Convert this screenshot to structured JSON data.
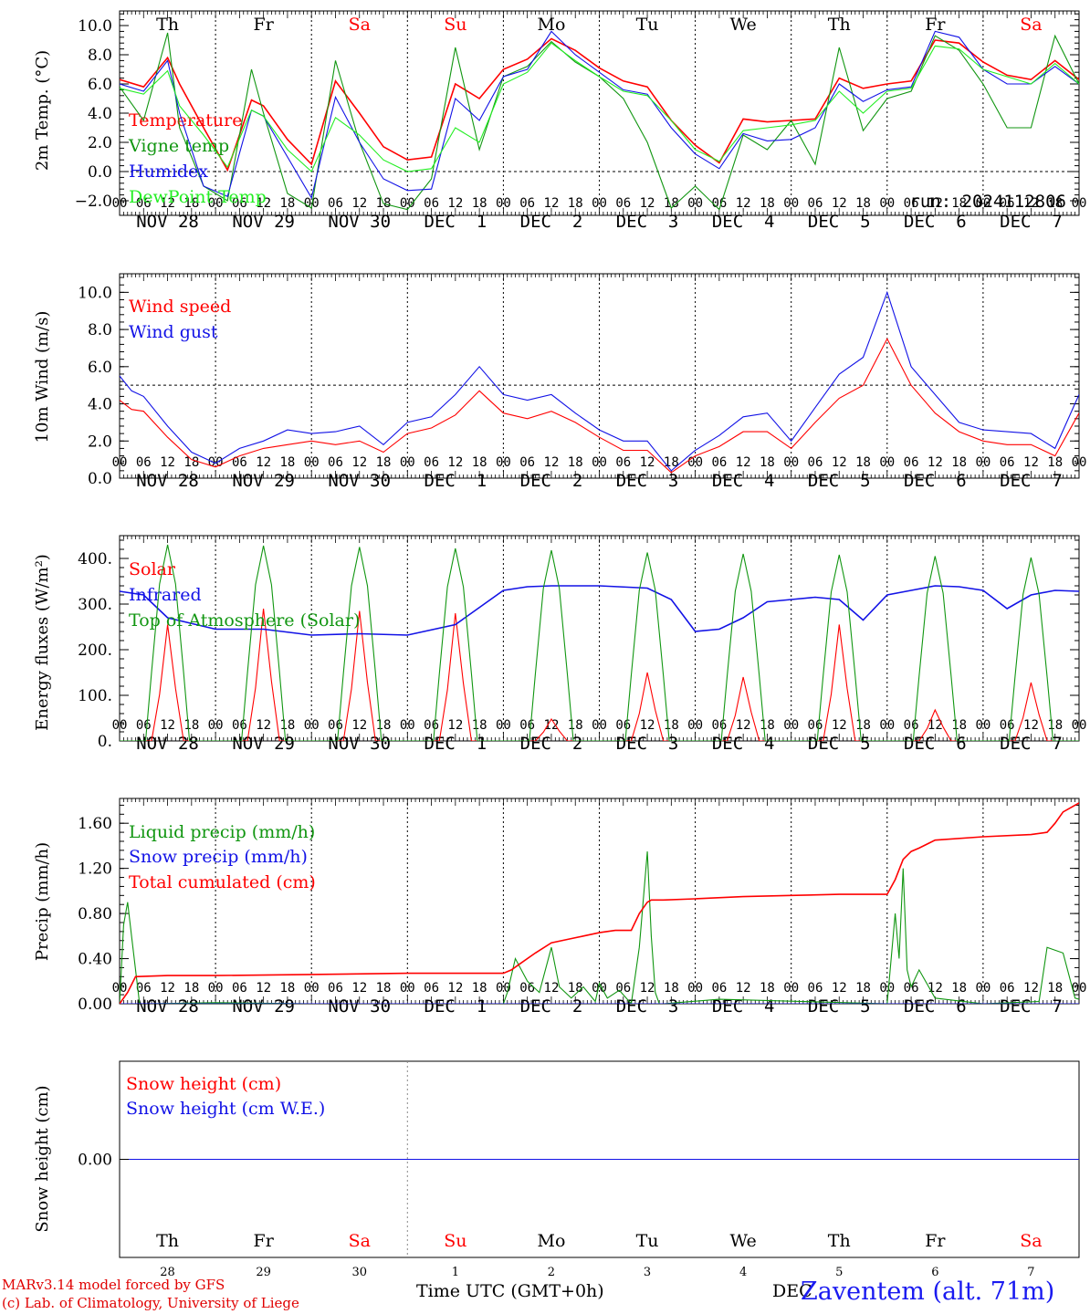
{
  "run_label": "run: 2024112806",
  "days": [
    "Th",
    "Fr",
    "Sa",
    "Su",
    "Mo",
    "Tu",
    "We",
    "Th",
    "Fr",
    "Sa"
  ],
  "weekend_days": [
    "Sa",
    "Su"
  ],
  "date_labels": [
    "NOV 28",
    "NOV 29",
    "NOV 30",
    "DEC  1",
    "DEC  2",
    "DEC  3",
    "DEC  4",
    "DEC  5",
    "DEC  6",
    "DEC  7"
  ],
  "bottom_day_numbers": [
    "28",
    "29",
    "30",
    "1",
    "2",
    "3",
    "4",
    "5",
    "6",
    "7"
  ],
  "hour_ticks": [
    "00",
    "06",
    "12",
    "18"
  ],
  "final_hour_tick": "00",
  "colors": {
    "red": "#ff0000",
    "green": "#119611",
    "blue": "#1212e6",
    "lightgreen": "#22ee22"
  },
  "footer": {
    "credit_line1": "MARv3.14 model forced by GFS",
    "credit_line2": "(c) Lab. of Climatology, University of Liege",
    "xaxis_title": "Time UTC (GMT+0h)",
    "month_overlap": "DEC",
    "station": "Zaventem (alt. 71m)"
  },
  "chart_data": [
    {
      "type": "line",
      "ylabel": "2m Temp. (°C)",
      "ylim": [
        -3,
        11
      ],
      "yticks": [
        -2,
        0,
        2,
        4,
        6,
        8,
        10
      ],
      "ytick_labels": [
        "−2.0",
        "0.0",
        "2.0",
        "4.0",
        "6.0",
        "8.0",
        "10.0"
      ],
      "ref_line": 0,
      "x_unit": "hours since NOV 28 00 UTC",
      "series": [
        {
          "name": "Temperature",
          "color": "red",
          "x": [
            0,
            6,
            12,
            15,
            21,
            27,
            33,
            36,
            42,
            48,
            54,
            60,
            66,
            72,
            78,
            84,
            90,
            96,
            102,
            108,
            114,
            120,
            126,
            132,
            138,
            144,
            150,
            156,
            162,
            168,
            174,
            180,
            186,
            192,
            198,
            204,
            210,
            216,
            222,
            228,
            234,
            240
          ],
          "y": [
            6.3,
            5.8,
            7.8,
            6,
            3,
            0.1,
            4.9,
            4.5,
            2.2,
            0.5,
            6.2,
            4,
            1.7,
            0.8,
            1,
            6,
            5,
            7,
            7.7,
            9.1,
            8.3,
            7.1,
            6.2,
            5.8,
            3.5,
            1.8,
            0.6,
            3.6,
            3.4,
            3.5,
            3.6,
            6.4,
            5.7,
            6,
            6.2,
            9,
            8.8,
            7.5,
            6.6,
            6.3,
            7.6,
            6.3
          ]
        },
        {
          "name": "Vigne temp",
          "color": "green",
          "x": [
            0,
            6,
            12,
            15,
            21,
            27,
            33,
            36,
            42,
            48,
            54,
            60,
            66,
            72,
            78,
            84,
            90,
            96,
            102,
            108,
            114,
            120,
            126,
            132,
            138,
            144,
            150,
            156,
            162,
            168,
            174,
            180,
            186,
            192,
            198,
            204,
            210,
            216,
            222,
            228,
            234,
            240
          ],
          "y": [
            5.8,
            3.5,
            9.5,
            3,
            -1,
            -2,
            7,
            4,
            -1.5,
            -2.5,
            7.6,
            2,
            -2.2,
            -2.6,
            -0.5,
            8.5,
            1.5,
            6.5,
            7.2,
            8.9,
            7.5,
            6.5,
            5,
            2,
            -2.5,
            -1,
            -2.6,
            2.5,
            1.5,
            3.5,
            0.5,
            8.5,
            2.8,
            5,
            5.5,
            9.3,
            8.3,
            6,
            3,
            3,
            9.3,
            6
          ]
        },
        {
          "name": "Humidex",
          "color": "blue",
          "x": [
            0,
            6,
            12,
            15,
            21,
            27,
            33,
            36,
            42,
            48,
            54,
            60,
            66,
            72,
            78,
            84,
            90,
            96,
            102,
            108,
            114,
            120,
            126,
            132,
            138,
            144,
            150,
            156,
            162,
            168,
            174,
            180,
            186,
            192,
            198,
            204,
            210,
            216,
            222,
            228,
            234,
            240
          ],
          "y": [
            6,
            5.5,
            7.6,
            4,
            -1,
            -1.7,
            4.2,
            3.8,
            1,
            -1.8,
            5.1,
            2,
            -0.5,
            -1.3,
            -1.2,
            5,
            3.5,
            6.5,
            7,
            9.6,
            8,
            6.8,
            5.6,
            5.3,
            3,
            1.2,
            0.2,
            2.6,
            2.1,
            2.2,
            3,
            6,
            4.8,
            5.6,
            5.8,
            9.6,
            9.2,
            7,
            6,
            6,
            7.2,
            6
          ]
        },
        {
          "name": "DewPoint Temp",
          "color": "lightgreen",
          "x": [
            0,
            6,
            12,
            15,
            21,
            27,
            33,
            36,
            42,
            48,
            54,
            60,
            66,
            72,
            78,
            84,
            90,
            96,
            102,
            108,
            114,
            120,
            126,
            132,
            138,
            144,
            150,
            156,
            162,
            168,
            174,
            180,
            186,
            192,
            198,
            204,
            210,
            216,
            222,
            228,
            234,
            240
          ],
          "y": [
            5.7,
            5.3,
            6.9,
            4.5,
            2.5,
            0.3,
            4.2,
            3.8,
            1.5,
            0,
            3.7,
            2.5,
            0.8,
            0,
            0.2,
            3,
            2,
            6,
            6.8,
            8.8,
            7.6,
            6.5,
            5.5,
            5.2,
            3.5,
            1.5,
            0.7,
            2.8,
            3,
            3.2,
            3.5,
            5.5,
            4,
            5.5,
            5.7,
            8.6,
            8.4,
            7,
            6.5,
            6,
            7.4,
            6
          ]
        }
      ]
    },
    {
      "type": "line",
      "ylabel": "10m Wind (m/s)",
      "ylim": [
        0,
        11
      ],
      "yticks": [
        0,
        2,
        4,
        6,
        8,
        10
      ],
      "ytick_labels": [
        "0.0",
        "2.0",
        "4.0",
        "6.0",
        "8.0",
        "10.0"
      ],
      "ref_line": 5,
      "series": [
        {
          "name": "Wind speed",
          "color": "red",
          "x": [
            0,
            3,
            6,
            12,
            18,
            24,
            30,
            36,
            42,
            48,
            54,
            60,
            66,
            72,
            78,
            84,
            90,
            96,
            102,
            108,
            114,
            120,
            126,
            132,
            138,
            144,
            150,
            156,
            162,
            168,
            174,
            180,
            186,
            192,
            198,
            204,
            210,
            216,
            222,
            228,
            234,
            240
          ],
          "y": [
            4.2,
            3.7,
            3.6,
            2.2,
            1,
            0.6,
            1.2,
            1.6,
            1.8,
            2,
            1.8,
            2,
            1.4,
            2.4,
            2.7,
            3.4,
            4.7,
            3.5,
            3.2,
            3.6,
            3,
            2.2,
            1.5,
            1.5,
            0.3,
            1.2,
            1.7,
            2.5,
            2.5,
            1.6,
            3,
            4.3,
            5,
            7.5,
            5,
            3.5,
            2.5,
            2,
            1.8,
            1.8,
            1.2,
            3.5
          ]
        },
        {
          "name": "Wind gust",
          "color": "blue",
          "x": [
            0,
            3,
            6,
            12,
            18,
            24,
            30,
            36,
            42,
            48,
            54,
            60,
            66,
            72,
            78,
            84,
            90,
            96,
            102,
            108,
            114,
            120,
            126,
            132,
            138,
            144,
            150,
            156,
            162,
            168,
            174,
            180,
            186,
            192,
            198,
            204,
            210,
            216,
            222,
            228,
            234,
            240
          ],
          "y": [
            5.5,
            4.7,
            4.4,
            2.8,
            1.4,
            0.8,
            1.6,
            2,
            2.6,
            2.4,
            2.5,
            2.8,
            1.8,
            3,
            3.3,
            4.5,
            6,
            4.5,
            4.2,
            4.5,
            3.5,
            2.6,
            2,
            2,
            0.4,
            1.5,
            2.3,
            3.3,
            3.5,
            2,
            3.8,
            5.6,
            6.5,
            10,
            6,
            4.5,
            3,
            2.6,
            2.5,
            2.4,
            1.6,
            4.5
          ]
        }
      ]
    },
    {
      "type": "line",
      "ylabel": "Energy fluxes (W/m²)",
      "ylim": [
        0,
        450
      ],
      "yticks": [
        0,
        100,
        200,
        300,
        400
      ],
      "ytick_labels": [
        "0.",
        "100.",
        "200.",
        "300.",
        "400."
      ],
      "series": [
        {
          "name": "Solar",
          "color": "red",
          "day_peaks": [
            255,
            290,
            285,
            280,
            48,
            150,
            140,
            255,
            68,
            128
          ]
        },
        {
          "name": "Infrared",
          "color": "blue",
          "x": [
            0,
            6,
            12,
            24,
            36,
            48,
            60,
            72,
            84,
            96,
            102,
            108,
            120,
            132,
            138,
            144,
            150,
            156,
            162,
            168,
            174,
            180,
            186,
            192,
            198,
            204,
            210,
            216,
            222,
            228,
            234,
            240
          ],
          "y": [
            328,
            320,
            270,
            245,
            245,
            232,
            235,
            232,
            255,
            330,
            338,
            340,
            340,
            335,
            310,
            240,
            245,
            270,
            305,
            310,
            315,
            310,
            265,
            320,
            330,
            340,
            338,
            330,
            290,
            320,
            330,
            328
          ]
        },
        {
          "name": "Top of Atmosphere (Solar)",
          "color": "green",
          "day_peaks": [
            430,
            428,
            425,
            422,
            418,
            413,
            410,
            408,
            405,
            402
          ]
        }
      ]
    },
    {
      "type": "line",
      "ylabel": "Precip (mm/h)",
      "ylim": [
        0,
        1.82
      ],
      "yticks": [
        0,
        0.4,
        0.8,
        1.2,
        1.6
      ],
      "ytick_labels": [
        "0.00",
        "0.40",
        "0.80",
        "1.20",
        "1.60"
      ],
      "series": [
        {
          "name": "Liquid precip (mm/h)",
          "color": "green",
          "x": [
            0,
            1,
            2,
            3,
            5,
            7,
            24,
            48,
            96,
            97,
            99,
            102,
            105,
            108,
            110,
            113,
            116,
            119,
            120,
            122,
            125,
            128,
            130,
            132,
            133,
            134,
            135,
            136,
            150,
            192,
            194,
            195,
            196,
            197,
            198,
            200,
            204,
            216,
            230,
            232,
            236,
            239,
            240
          ],
          "y": [
            0,
            0.7,
            0.9,
            0.6,
            0,
            0,
            0.01,
            0,
            0,
            0.1,
            0.4,
            0.2,
            0.1,
            0.5,
            0.15,
            0.05,
            0.15,
            0.02,
            0.18,
            0.05,
            0.12,
            0,
            0.5,
            1.35,
            0.6,
            0.1,
            0,
            0,
            0.04,
            0,
            0.8,
            0.4,
            1.2,
            0.3,
            0.15,
            0.3,
            0.05,
            0,
            0.02,
            0.5,
            0.45,
            0.05,
            0.04
          ]
        },
        {
          "name": "Snow precip (mm/h)",
          "color": "blue",
          "x": [
            0,
            240
          ],
          "y": [
            0,
            0
          ]
        },
        {
          "name": "Total cumulated (cm)",
          "color": "red",
          "x": [
            0,
            2,
            4,
            12,
            24,
            48,
            72,
            96,
            98,
            100,
            104,
            108,
            112,
            116,
            120,
            124,
            128,
            130,
            132,
            133,
            136,
            144,
            156,
            168,
            180,
            192,
            194,
            196,
            198,
            200,
            204,
            216,
            228,
            232,
            234,
            236,
            240
          ],
          "y": [
            0,
            0.1,
            0.24,
            0.25,
            0.25,
            0.26,
            0.27,
            0.27,
            0.3,
            0.35,
            0.45,
            0.54,
            0.57,
            0.6,
            0.63,
            0.65,
            0.65,
            0.8,
            0.9,
            0.92,
            0.92,
            0.93,
            0.95,
            0.96,
            0.97,
            0.97,
            1.1,
            1.28,
            1.35,
            1.38,
            1.45,
            1.48,
            1.5,
            1.52,
            1.6,
            1.7,
            1.78
          ]
        }
      ]
    },
    {
      "type": "line",
      "ylabel": "Snow height (cm)",
      "ytick_labels": [
        "0.00"
      ],
      "series": [
        {
          "name": "Snow height (cm)",
          "color": "red",
          "x": [
            0,
            240
          ],
          "y": [
            0,
            0
          ]
        },
        {
          "name": "Snow height (cm W.E.)",
          "color": "blue",
          "x": [
            0,
            240
          ],
          "y": [
            0,
            0
          ]
        }
      ]
    }
  ]
}
